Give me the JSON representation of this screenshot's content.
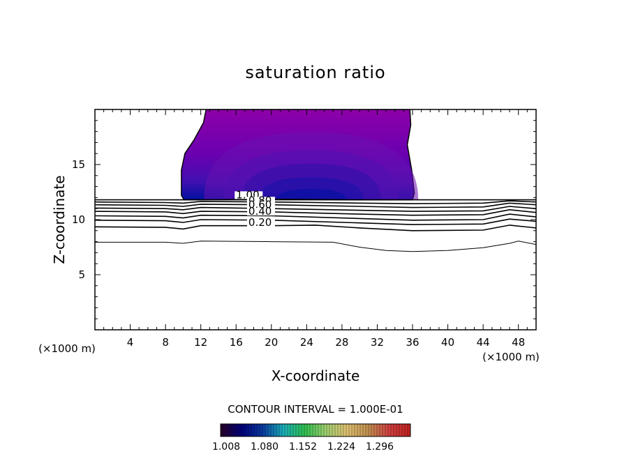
{
  "chart_data": {
    "type": "contour",
    "title": "saturation ratio",
    "xlabel": "X-coordinate",
    "ylabel": "Z-coordinate",
    "x_unit_left": "(×1000 m)",
    "x_unit_right": "(×1000 m)",
    "xlim": [
      0,
      50
    ],
    "ylim": [
      0,
      20
    ],
    "x_ticks": [
      4,
      8,
      12,
      16,
      20,
      24,
      28,
      32,
      36,
      40,
      44,
      48
    ],
    "y_ticks": [
      5,
      10,
      15
    ],
    "contour_interval_text": "CONTOUR INTERVAL = 1.000E-01",
    "contour_labels": [
      {
        "text": "1.00",
        "x": 16.0,
        "y": 12.0
      },
      {
        "text": "0.80",
        "x": 17.4,
        "y": 11.5
      },
      {
        "text": "0.60",
        "x": 17.4,
        "y": 11.1
      },
      {
        "text": "0.40",
        "x": 17.4,
        "y": 10.5
      },
      {
        "text": "0.20",
        "x": 17.4,
        "y": 9.5
      }
    ],
    "filled_region": {
      "description": "supersaturated cloud region",
      "x_range": [
        9.8,
        36.2
      ],
      "z_range": [
        11.8,
        20.0
      ],
      "min_value": 1.008,
      "max_value": 1.3
    },
    "contour_lines": [
      {
        "level": 1.0,
        "points": [
          [
            0,
            11.8
          ],
          [
            12,
            11.8
          ],
          [
            20,
            11.85
          ],
          [
            30,
            11.8
          ],
          [
            36,
            11.8
          ],
          [
            44,
            11.8
          ],
          [
            50,
            11.8
          ]
        ]
      },
      {
        "level": 0.9,
        "points": [
          [
            0,
            11.6
          ],
          [
            8,
            11.55
          ],
          [
            10,
            11.5
          ],
          [
            12,
            11.65
          ],
          [
            20,
            11.6
          ],
          [
            30,
            11.5
          ],
          [
            36,
            11.45
          ],
          [
            44,
            11.5
          ],
          [
            47,
            11.7
          ],
          [
            50,
            11.6
          ]
        ]
      },
      {
        "level": 0.8,
        "points": [
          [
            0,
            11.35
          ],
          [
            8,
            11.3
          ],
          [
            10,
            11.2
          ],
          [
            12,
            11.4
          ],
          [
            20,
            11.35
          ],
          [
            30,
            11.2
          ],
          [
            36,
            11.1
          ],
          [
            44,
            11.15
          ],
          [
            47,
            11.5
          ],
          [
            50,
            11.35
          ]
        ]
      },
      {
        "level": 0.7,
        "points": [
          [
            0,
            11.05
          ],
          [
            8,
            11.0
          ],
          [
            10,
            10.9
          ],
          [
            12,
            11.1
          ],
          [
            20,
            11.0
          ],
          [
            30,
            10.85
          ],
          [
            36,
            10.75
          ],
          [
            44,
            10.8
          ],
          [
            47,
            11.2
          ],
          [
            50,
            11.0
          ]
        ]
      },
      {
        "level": 0.6,
        "points": [
          [
            0,
            10.75
          ],
          [
            8,
            10.7
          ],
          [
            10,
            10.55
          ],
          [
            12,
            10.75
          ],
          [
            20,
            10.7
          ],
          [
            30,
            10.5
          ],
          [
            36,
            10.4
          ],
          [
            44,
            10.45
          ],
          [
            47,
            10.9
          ],
          [
            50,
            10.65
          ]
        ]
      },
      {
        "level": 0.5,
        "points": [
          [
            0,
            10.35
          ],
          [
            8,
            10.3
          ],
          [
            10,
            10.15
          ],
          [
            12,
            10.4
          ],
          [
            20,
            10.35
          ],
          [
            30,
            10.1
          ],
          [
            36,
            9.95
          ],
          [
            44,
            10.0
          ],
          [
            47,
            10.5
          ],
          [
            50,
            10.25
          ]
        ]
      },
      {
        "level": 0.4,
        "points": [
          [
            0,
            9.95
          ],
          [
            8,
            9.9
          ],
          [
            10,
            9.75
          ],
          [
            12,
            10.0
          ],
          [
            20,
            9.95
          ],
          [
            30,
            9.7
          ],
          [
            36,
            9.55
          ],
          [
            44,
            9.6
          ],
          [
            47,
            10.05
          ],
          [
            50,
            9.85
          ]
        ]
      },
      {
        "level": 0.3,
        "points": [
          [
            0,
            9.35
          ],
          [
            8,
            9.3
          ],
          [
            10,
            9.15
          ],
          [
            12,
            9.45
          ],
          [
            20,
            9.45
          ],
          [
            25,
            9.5
          ],
          [
            30,
            9.25
          ],
          [
            36,
            9.0
          ],
          [
            44,
            9.05
          ],
          [
            47,
            9.5
          ],
          [
            50,
            9.25
          ]
        ]
      },
      {
        "level": 0.2,
        "points": [
          [
            0,
            7.95
          ],
          [
            8,
            7.95
          ],
          [
            10,
            7.85
          ],
          [
            12,
            8.05
          ],
          [
            20,
            8.0
          ],
          [
            27,
            7.95
          ],
          [
            30,
            7.5
          ],
          [
            33,
            7.2
          ],
          [
            36,
            7.1
          ],
          [
            40,
            7.2
          ],
          [
            44,
            7.45
          ],
          [
            47,
            7.85
          ],
          [
            48,
            8.05
          ],
          [
            50,
            7.75
          ]
        ]
      }
    ],
    "colorbar": {
      "tick_values": [
        "1.008",
        "1.080",
        "1.152",
        "1.224",
        "1.296"
      ],
      "colors": [
        "#280028",
        "#00007a",
        "#0a3aa0",
        "#1ab0b8",
        "#30c050",
        "#a0d070",
        "#e0c070",
        "#c09050",
        "#d04040",
        "#c02020"
      ]
    },
    "colors": {
      "fill_light": "#8d00a8",
      "fill_dark": "#0010a0",
      "axes": "#000000"
    }
  }
}
